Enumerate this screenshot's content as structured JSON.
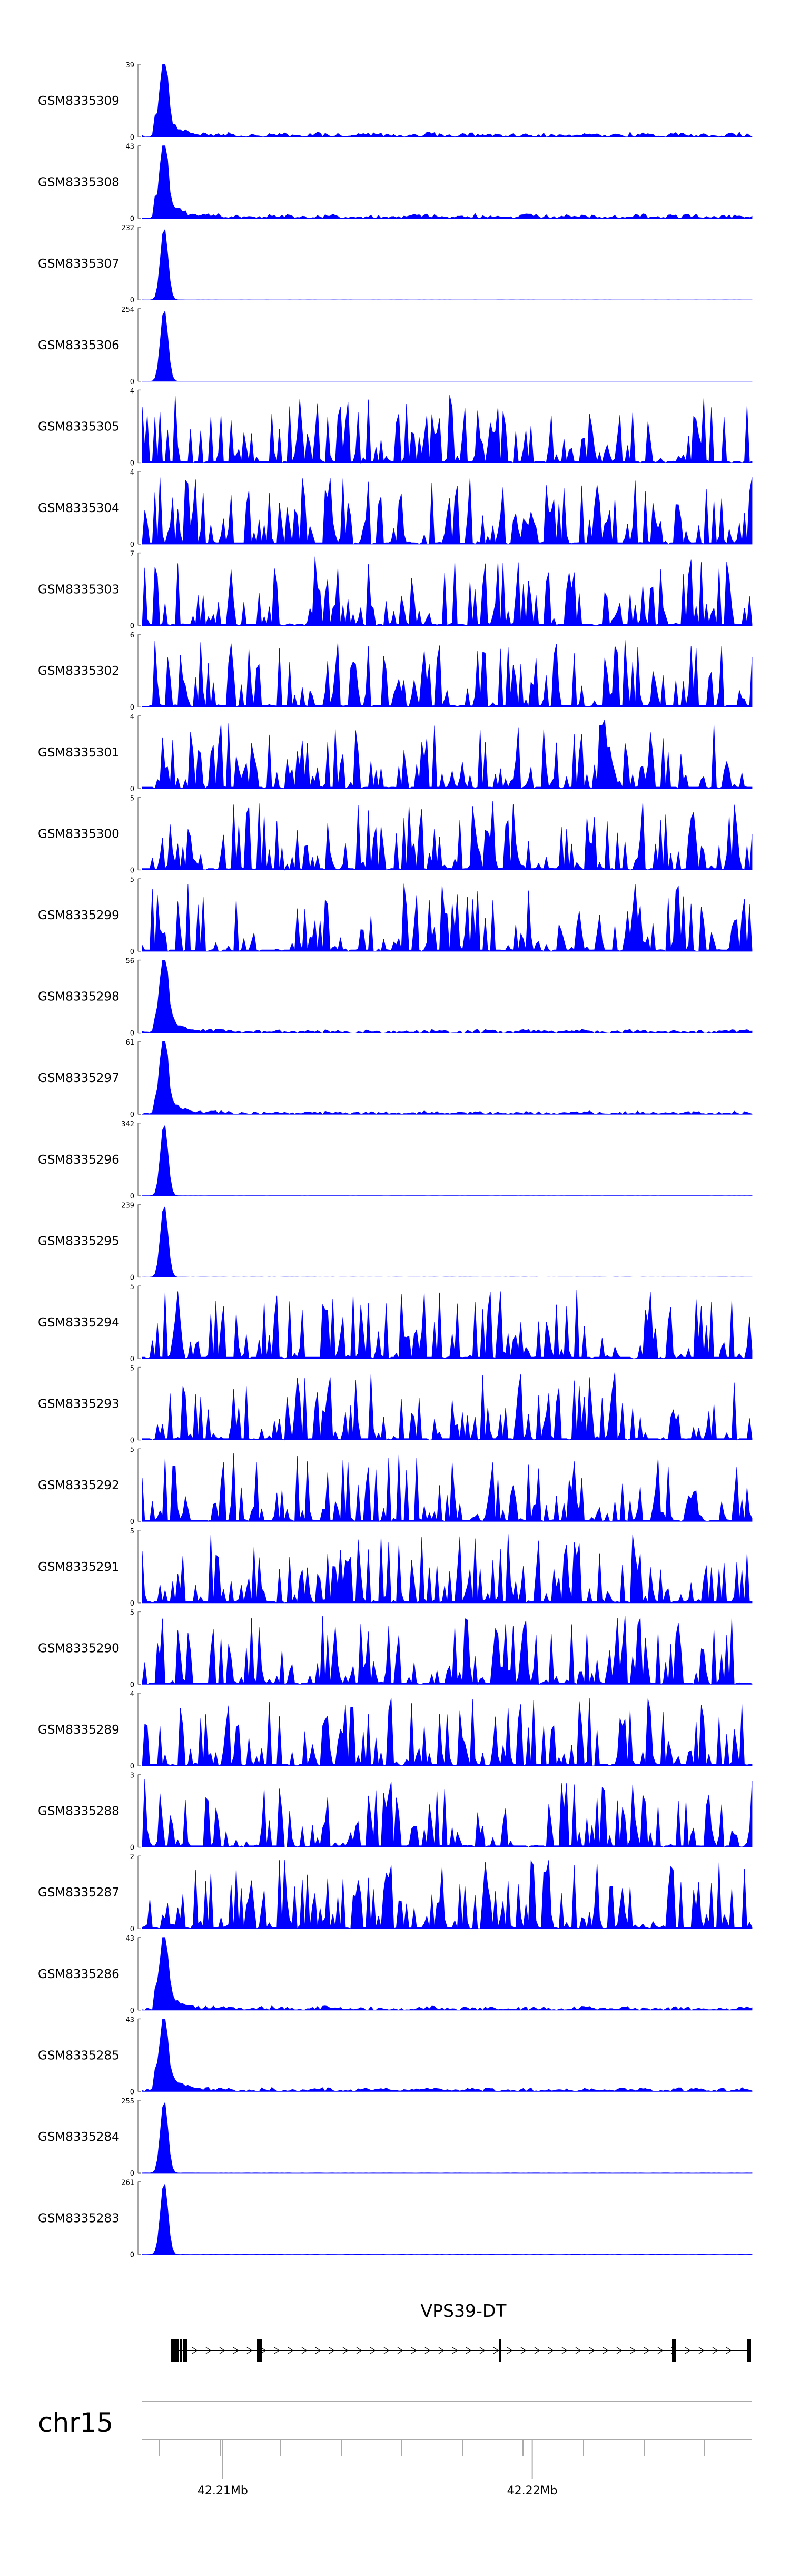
{
  "chart_data": {
    "type": "area",
    "title": "",
    "xlabel": "",
    "color": "#0000FF",
    "region": {
      "chromosome": "chr15",
      "start_mb": 42.2074,
      "end_mb": 42.2271
    },
    "axis": {
      "ticks": [
        {
          "label": "42.21Mb",
          "value": 42.21
        },
        {
          "label": "42.22Mb",
          "value": 42.22
        }
      ]
    },
    "gene": {
      "name": "VPS39-DT"
    },
    "tracks": [
      {
        "name": "GSM8335309",
        "ymax": 39,
        "ymin": 0,
        "peak": 39,
        "kind": "peak_bg",
        "noise": 0.07
      },
      {
        "name": "GSM8335308",
        "ymax": 43,
        "ymin": 0,
        "peak": 43,
        "kind": "peak_bg",
        "noise": 0.07
      },
      {
        "name": "GSM8335307",
        "ymax": 232,
        "ymin": 0,
        "peak": 232,
        "kind": "peak",
        "noise": 0.005
      },
      {
        "name": "GSM8335306",
        "ymax": 254,
        "ymin": 0,
        "peak": 254,
        "kind": "peak",
        "noise": 0.005
      },
      {
        "name": "GSM8335305",
        "ymax": 4,
        "ymin": 0,
        "peak": 4,
        "kind": "noise",
        "noise": 0
      },
      {
        "name": "GSM8335304",
        "ymax": 4,
        "ymin": 0,
        "peak": 4,
        "kind": "noise",
        "noise": 0
      },
      {
        "name": "GSM8335303",
        "ymax": 7,
        "ymin": 0,
        "peak": 7,
        "kind": "noise",
        "noise": 0
      },
      {
        "name": "GSM8335302",
        "ymax": 6,
        "ymin": 0,
        "peak": 6,
        "kind": "noise",
        "noise": 0
      },
      {
        "name": "GSM8335301",
        "ymax": 4,
        "ymin": 0,
        "peak": 4,
        "kind": "noise",
        "noise": 0
      },
      {
        "name": "GSM8335300",
        "ymax": 5,
        "ymin": 0,
        "peak": 5,
        "kind": "noise",
        "noise": 0
      },
      {
        "name": "GSM8335299",
        "ymax": 5,
        "ymin": 0,
        "peak": 5,
        "kind": "noise",
        "noise": 0
      },
      {
        "name": "GSM8335298",
        "ymax": 56,
        "ymin": 0,
        "peak": 56,
        "kind": "peak_bg",
        "noise": 0.05
      },
      {
        "name": "GSM8335297",
        "ymax": 61,
        "ymin": 0,
        "peak": 61,
        "kind": "peak_bg",
        "noise": 0.05
      },
      {
        "name": "GSM8335296",
        "ymax": 342,
        "ymin": 0,
        "peak": 342,
        "kind": "peak",
        "noise": 0.005
      },
      {
        "name": "GSM8335295",
        "ymax": 239,
        "ymin": 0,
        "peak": 239,
        "kind": "peak",
        "noise": 0.005
      },
      {
        "name": "GSM8335294",
        "ymax": 5,
        "ymin": 0,
        "peak": 5,
        "kind": "noise",
        "noise": 0
      },
      {
        "name": "GSM8335293",
        "ymax": 5,
        "ymin": 0,
        "peak": 5,
        "kind": "noise",
        "noise": 0
      },
      {
        "name": "GSM8335292",
        "ymax": 5,
        "ymin": 0,
        "peak": 5,
        "kind": "noise",
        "noise": 0
      },
      {
        "name": "GSM8335291",
        "ymax": 5,
        "ymin": 0,
        "peak": 5,
        "kind": "noise",
        "noise": 0
      },
      {
        "name": "GSM8335290",
        "ymax": 5,
        "ymin": 0,
        "peak": 5,
        "kind": "noise",
        "noise": 0
      },
      {
        "name": "GSM8335289",
        "ymax": 4,
        "ymin": 0,
        "peak": 4,
        "kind": "noise",
        "noise": 0
      },
      {
        "name": "GSM8335288",
        "ymax": 3,
        "ymin": 0,
        "peak": 3,
        "kind": "noise",
        "noise": 0
      },
      {
        "name": "GSM8335287",
        "ymax": 2,
        "ymin": 0,
        "peak": 2,
        "kind": "noise",
        "noise": 0
      },
      {
        "name": "GSM8335286",
        "ymax": 43,
        "ymin": 0,
        "peak": 43,
        "kind": "peak_bg",
        "noise": 0.06
      },
      {
        "name": "GSM8335285",
        "ymax": 43,
        "ymin": 0,
        "peak": 43,
        "kind": "peak_bg",
        "noise": 0.06
      },
      {
        "name": "GSM8335284",
        "ymax": 255,
        "ymin": 0,
        "peak": 255,
        "kind": "peak",
        "noise": 0.005
      },
      {
        "name": "GSM8335283",
        "ymax": 261,
        "ymin": 0,
        "peak": 261,
        "kind": "peak",
        "noise": 0.005
      }
    ]
  }
}
